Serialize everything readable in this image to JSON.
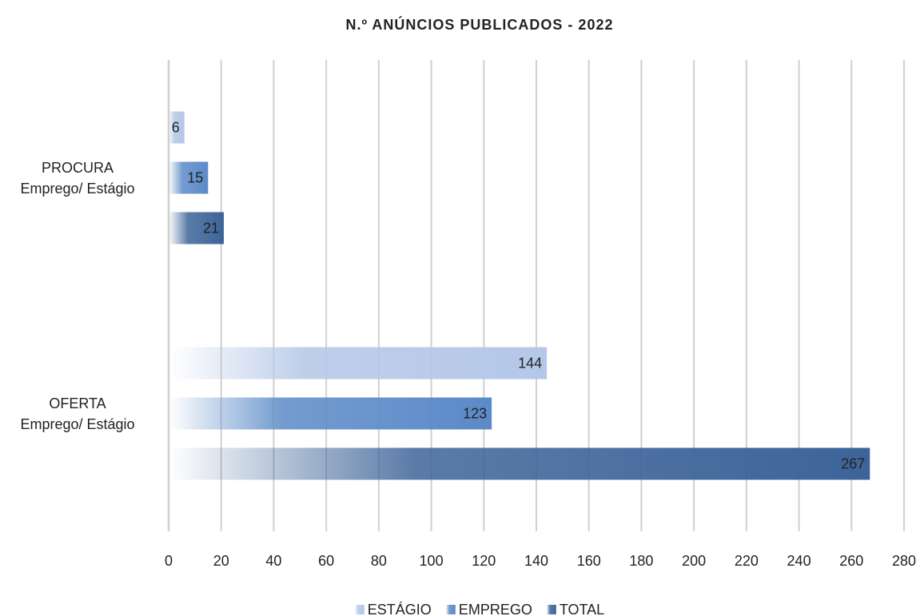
{
  "chart_data": {
    "type": "bar",
    "orientation": "horizontal",
    "title": "N.º ANÚNCIOS PUBLICADOS - 2022",
    "categories": [
      "PROCURA\nEmprego/ Estágio",
      "OFERTA\nEmprego/ Estágio"
    ],
    "series": [
      {
        "name": "ESTÁGIO",
        "color": "#b4c7e7",
        "values": [
          6,
          144
        ]
      },
      {
        "name": "EMPREGO",
        "color": "#5b8ac8",
        "values": [
          15,
          123
        ]
      },
      {
        "name": "TOTAL",
        "color": "#3d6499",
        "values": [
          21,
          267
        ]
      }
    ],
    "xlim": [
      0,
      280
    ],
    "xticks": [
      0,
      20,
      40,
      60,
      80,
      100,
      120,
      140,
      160,
      180,
      200,
      220,
      240,
      260,
      280
    ],
    "grid": true,
    "legend": "bottom"
  }
}
